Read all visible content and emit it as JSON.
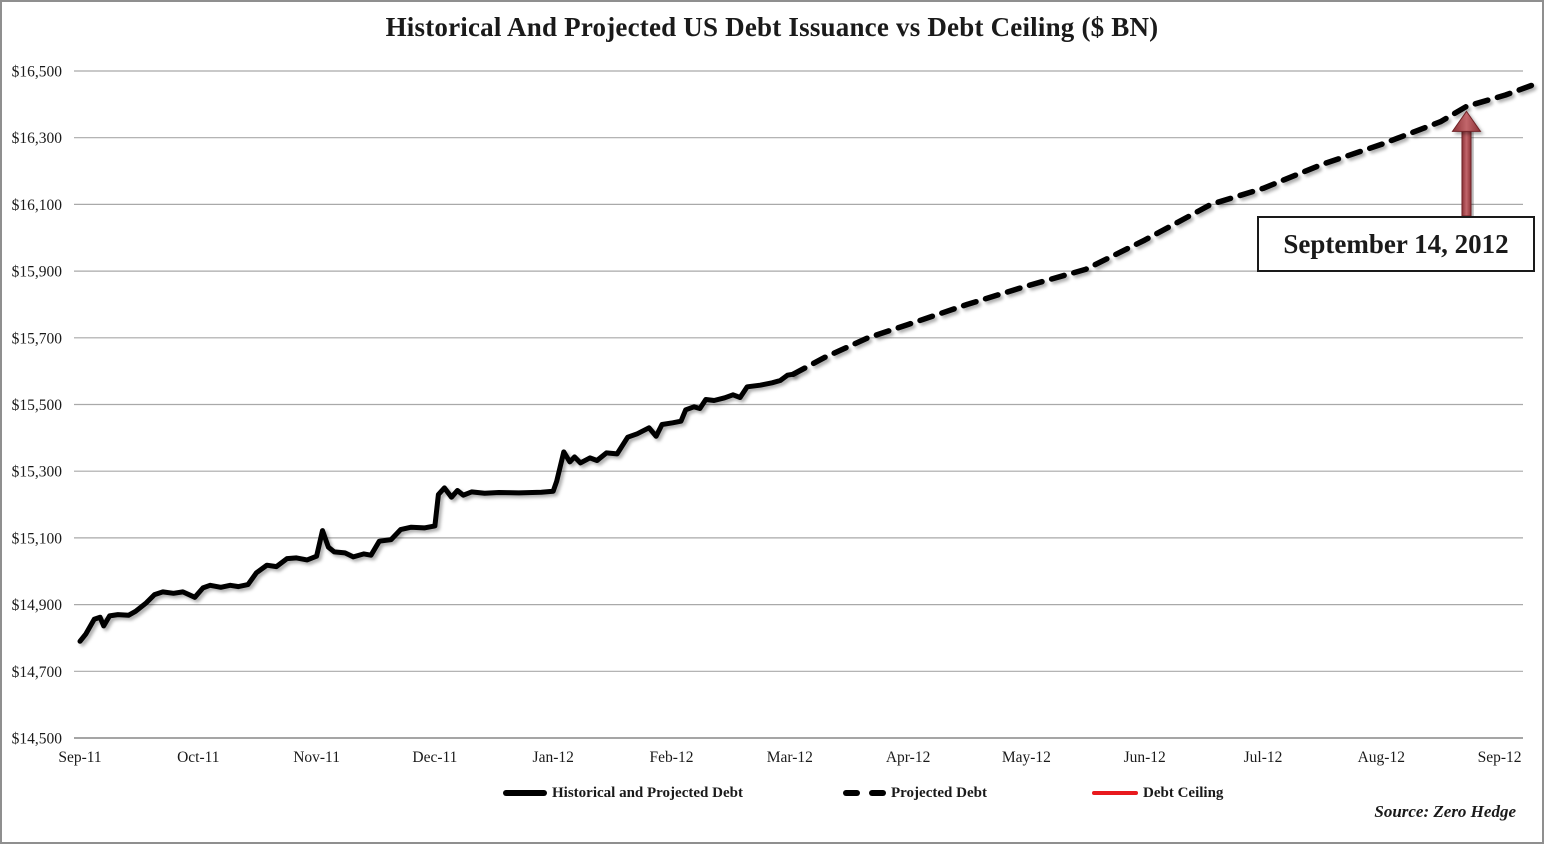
{
  "title": "Historical And Projected US Debt Issuance vs Debt Ceiling ($ BN)",
  "source": "Source: Zero Hedge",
  "annotation": {
    "label": "September 14, 2012",
    "arrow_month": 11.72
  },
  "legend": [
    {
      "label": "Historical and Projected Debt",
      "style": "solid",
      "color": "#000000"
    },
    {
      "label": "Projected Debt",
      "style": "dashed",
      "color": "#000000"
    },
    {
      "label": "Debt Ceiling",
      "style": "solid",
      "color": "#e8191d"
    }
  ],
  "chart_data": {
    "type": "line",
    "title": "Historical And Projected US Debt Issuance vs Debt Ceiling ($ BN)",
    "xlabel": "",
    "ylabel": "",
    "ylim": [
      14500,
      16500
    ],
    "xlim_months": [
      0,
      12.33
    ],
    "grid": "horizontal",
    "legend_position": "bottom",
    "y_ticks": [
      {
        "value": 16500,
        "label": "$16,500"
      },
      {
        "value": 16300,
        "label": "$16,300"
      },
      {
        "value": 16100,
        "label": "$16,100"
      },
      {
        "value": 15900,
        "label": "$15,900"
      },
      {
        "value": 15700,
        "label": "$15,700"
      },
      {
        "value": 15500,
        "label": "$15,500"
      },
      {
        "value": 15300,
        "label": "$15,300"
      },
      {
        "value": 15100,
        "label": "$15,100"
      },
      {
        "value": 14900,
        "label": "$14,900"
      },
      {
        "value": 14700,
        "label": "$14,700"
      },
      {
        "value": 14500,
        "label": "$14,500"
      }
    ],
    "x_ticks": [
      {
        "m": 0,
        "label": "Sep-11"
      },
      {
        "m": 1,
        "label": "Oct-11"
      },
      {
        "m": 2,
        "label": "Nov-11"
      },
      {
        "m": 3,
        "label": "Dec-11"
      },
      {
        "m": 4,
        "label": "Jan-12"
      },
      {
        "m": 5,
        "label": "Feb-12"
      },
      {
        "m": 6,
        "label": "Mar-12"
      },
      {
        "m": 7,
        "label": "Apr-12"
      },
      {
        "m": 8,
        "label": "May-12"
      },
      {
        "m": 9,
        "label": "Jun-12"
      },
      {
        "m": 10,
        "label": "Jul-12"
      },
      {
        "m": 11,
        "label": "Aug-12"
      },
      {
        "m": 12,
        "label": "Sep-12"
      }
    ],
    "series": [
      {
        "name": "Historical and Projected Debt",
        "style": "solid",
        "color": "#000000",
        "points": [
          [
            0,
            14790
          ],
          [
            0.05,
            14812
          ],
          [
            0.12,
            14856
          ],
          [
            0.17,
            14862
          ],
          [
            0.2,
            14836
          ],
          [
            0.25,
            14866
          ],
          [
            0.32,
            14870
          ],
          [
            0.41,
            14868
          ],
          [
            0.47,
            14880
          ],
          [
            0.56,
            14905
          ],
          [
            0.63,
            14930
          ],
          [
            0.7,
            14938
          ],
          [
            0.79,
            14934
          ],
          [
            0.87,
            14938
          ],
          [
            0.97,
            14922
          ],
          [
            1.04,
            14950
          ],
          [
            1.1,
            14958
          ],
          [
            1.19,
            14952
          ],
          [
            1.27,
            14958
          ],
          [
            1.34,
            14954
          ],
          [
            1.42,
            14960
          ],
          [
            1.49,
            14995
          ],
          [
            1.58,
            15018
          ],
          [
            1.66,
            15014
          ],
          [
            1.75,
            15038
          ],
          [
            1.83,
            15040
          ],
          [
            1.92,
            15034
          ],
          [
            2,
            15045
          ],
          [
            2.05,
            15122
          ],
          [
            2.1,
            15072
          ],
          [
            2.15,
            15058
          ],
          [
            2.24,
            15055
          ],
          [
            2.31,
            15043
          ],
          [
            2.4,
            15052
          ],
          [
            2.46,
            15048
          ],
          [
            2.53,
            15090
          ],
          [
            2.63,
            15095
          ],
          [
            2.71,
            15125
          ],
          [
            2.8,
            15132
          ],
          [
            2.91,
            15130
          ],
          [
            3,
            15136
          ],
          [
            3.03,
            15230
          ],
          [
            3.08,
            15250
          ],
          [
            3.14,
            15222
          ],
          [
            3.19,
            15242
          ],
          [
            3.24,
            15228
          ],
          [
            3.31,
            15238
          ],
          [
            3.42,
            15234
          ],
          [
            3.54,
            15236
          ],
          [
            3.71,
            15235
          ],
          [
            3.9,
            15237
          ],
          [
            4,
            15240
          ],
          [
            4.03,
            15270
          ],
          [
            4.09,
            15358
          ],
          [
            4.14,
            15328
          ],
          [
            4.18,
            15343
          ],
          [
            4.23,
            15325
          ],
          [
            4.31,
            15340
          ],
          [
            4.37,
            15332
          ],
          [
            4.45,
            15355
          ],
          [
            4.54,
            15352
          ],
          [
            4.63,
            15402
          ],
          [
            4.71,
            15412
          ],
          [
            4.81,
            15430
          ],
          [
            4.87,
            15405
          ],
          [
            4.92,
            15440
          ],
          [
            5.01,
            15445
          ],
          [
            5.08,
            15450
          ],
          [
            5.12,
            15484
          ],
          [
            5.19,
            15493
          ],
          [
            5.24,
            15488
          ],
          [
            5.29,
            15515
          ],
          [
            5.36,
            15512
          ],
          [
            5.45,
            15520
          ],
          [
            5.52,
            15529
          ],
          [
            5.58,
            15521
          ],
          [
            5.64,
            15553
          ],
          [
            5.75,
            15558
          ],
          [
            5.85,
            15565
          ],
          [
            5.92,
            15572
          ],
          [
            5.98,
            15588
          ],
          [
            6.03,
            15591
          ]
        ]
      },
      {
        "name": "Projected Debt",
        "style": "dashed",
        "color": "#000000",
        "points": [
          [
            6.03,
            15591
          ],
          [
            6.3,
            15642
          ],
          [
            6.66,
            15700
          ],
          [
            7,
            15740
          ],
          [
            7.5,
            15800
          ],
          [
            8,
            15855
          ],
          [
            8.5,
            15905
          ],
          [
            9,
            15993
          ],
          [
            9.56,
            16100
          ],
          [
            10,
            16148
          ],
          [
            10.5,
            16220
          ],
          [
            11,
            16280
          ],
          [
            11.5,
            16348
          ],
          [
            11.72,
            16394
          ],
          [
            12.05,
            16428
          ],
          [
            12.28,
            16458
          ]
        ]
      },
      {
        "name": "Debt Ceiling",
        "style": "solid",
        "color": "#e8191d",
        "value": 16394
      }
    ]
  }
}
